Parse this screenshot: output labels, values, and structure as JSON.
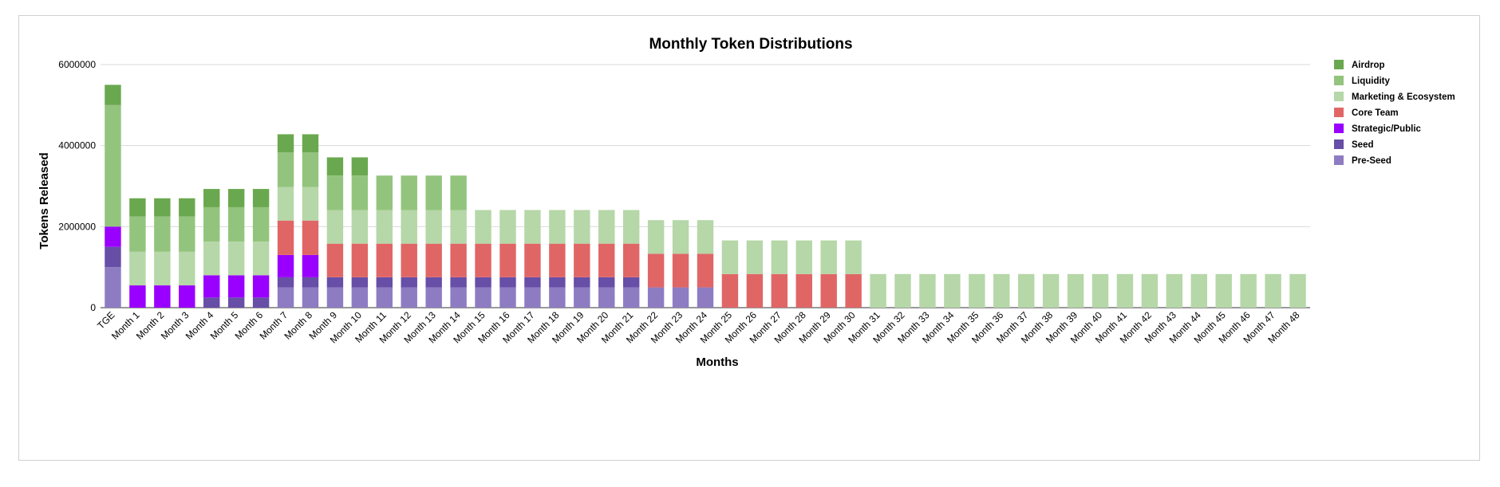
{
  "chart_data": {
    "type": "bar",
    "stacked": true,
    "title": "Monthly Token Distributions",
    "xlabel": "Months",
    "ylabel": "Tokens Released",
    "ylim": [
      0,
      6000000
    ],
    "yticks": [
      "0",
      "2000000",
      "4000000",
      "6000000"
    ],
    "grid": true,
    "legend_position": "right",
    "categories": [
      "TGE",
      "Month 1",
      "Month 2",
      "Month 3",
      "Month 4",
      "Month 5",
      "Month 6",
      "Month 7",
      "Month 8",
      "Month 9",
      "Month 10",
      "Month 11",
      "Month 12",
      "Month 13",
      "Month 14",
      "Month 15",
      "Month 16",
      "Month 17",
      "Month 18",
      "Month 19",
      "Month 20",
      "Month 21",
      "Month 22",
      "Month 23",
      "Month 24",
      "Month 25",
      "Month 26",
      "Month 27",
      "Month 28",
      "Month 29",
      "Month 30",
      "Month 31",
      "Month 32",
      "Month 33",
      "Month 34",
      "Month 35",
      "Month 36",
      "Month 37",
      "Month 38",
      "Month 39",
      "Month 40",
      "Month 41",
      "Month 42",
      "Month 43",
      "Month 44",
      "Month 45",
      "Month 46",
      "Month 47",
      "Month 48"
    ],
    "series": [
      {
        "name": "Pre-Seed",
        "color": "#8e7cc3",
        "values": [
          1000000,
          0,
          0,
          0,
          0,
          0,
          0,
          500000,
          500000,
          500000,
          500000,
          500000,
          500000,
          500000,
          500000,
          500000,
          500000,
          500000,
          500000,
          500000,
          500000,
          500000,
          500000,
          500000,
          500000,
          0,
          0,
          0,
          0,
          0,
          0,
          0,
          0,
          0,
          0,
          0,
          0,
          0,
          0,
          0,
          0,
          0,
          0,
          0,
          0,
          0,
          0,
          0,
          0
        ]
      },
      {
        "name": "Seed",
        "color": "#674ea7",
        "values": [
          500000,
          0,
          0,
          0,
          250000,
          250000,
          250000,
          250000,
          250000,
          250000,
          250000,
          250000,
          250000,
          250000,
          250000,
          250000,
          250000,
          250000,
          250000,
          250000,
          250000,
          250000,
          0,
          0,
          0,
          0,
          0,
          0,
          0,
          0,
          0,
          0,
          0,
          0,
          0,
          0,
          0,
          0,
          0,
          0,
          0,
          0,
          0,
          0,
          0,
          0,
          0,
          0,
          0
        ]
      },
      {
        "name": "Strategic/Public",
        "color": "#9900ff",
        "values": [
          500000,
          550000,
          550000,
          550000,
          550000,
          550000,
          550000,
          550000,
          550000,
          0,
          0,
          0,
          0,
          0,
          0,
          0,
          0,
          0,
          0,
          0,
          0,
          0,
          0,
          0,
          0,
          0,
          0,
          0,
          0,
          0,
          0,
          0,
          0,
          0,
          0,
          0,
          0,
          0,
          0,
          0,
          0,
          0,
          0,
          0,
          0,
          0,
          0,
          0,
          0
        ]
      },
      {
        "name": "Core Team",
        "color": "#e06666",
        "values": [
          0,
          0,
          0,
          0,
          0,
          0,
          0,
          850000,
          850000,
          830000,
          830000,
          830000,
          830000,
          830000,
          830000,
          830000,
          830000,
          830000,
          830000,
          830000,
          830000,
          830000,
          830000,
          830000,
          830000,
          830000,
          830000,
          830000,
          830000,
          830000,
          830000,
          0,
          0,
          0,
          0,
          0,
          0,
          0,
          0,
          0,
          0,
          0,
          0,
          0,
          0,
          0,
          0,
          0,
          0
        ]
      },
      {
        "name": "Marketing & Ecosystem",
        "color": "#b6d7a8",
        "values": [
          0,
          830000,
          830000,
          830000,
          830000,
          830000,
          830000,
          830000,
          830000,
          830000,
          830000,
          830000,
          830000,
          830000,
          830000,
          830000,
          830000,
          830000,
          830000,
          830000,
          830000,
          830000,
          830000,
          830000,
          830000,
          830000,
          830000,
          830000,
          830000,
          830000,
          830000,
          830000,
          830000,
          830000,
          830000,
          830000,
          830000,
          830000,
          830000,
          830000,
          830000,
          830000,
          830000,
          830000,
          830000,
          830000,
          830000,
          830000,
          830000
        ]
      },
      {
        "name": "Liquidity",
        "color": "#93c47d",
        "values": [
          3000000,
          870000,
          870000,
          870000,
          850000,
          850000,
          850000,
          850000,
          850000,
          850000,
          850000,
          850000,
          850000,
          850000,
          850000,
          0,
          0,
          0,
          0,
          0,
          0,
          0,
          0,
          0,
          0,
          0,
          0,
          0,
          0,
          0,
          0,
          0,
          0,
          0,
          0,
          0,
          0,
          0,
          0,
          0,
          0,
          0,
          0,
          0,
          0,
          0,
          0,
          0,
          0
        ]
      },
      {
        "name": "Airdrop",
        "color": "#6aa84f",
        "values": [
          500000,
          450000,
          450000,
          450000,
          450000,
          450000,
          450000,
          450000,
          450000,
          450000,
          450000,
          0,
          0,
          0,
          0,
          0,
          0,
          0,
          0,
          0,
          0,
          0,
          0,
          0,
          0,
          0,
          0,
          0,
          0,
          0,
          0,
          0,
          0,
          0,
          0,
          0,
          0,
          0,
          0,
          0,
          0,
          0,
          0,
          0,
          0,
          0,
          0,
          0,
          0
        ]
      }
    ],
    "legend_order": [
      "Airdrop",
      "Liquidity",
      "Marketing & Ecosystem",
      "Core Team",
      "Strategic/Public",
      "Seed",
      "Pre-Seed"
    ]
  }
}
